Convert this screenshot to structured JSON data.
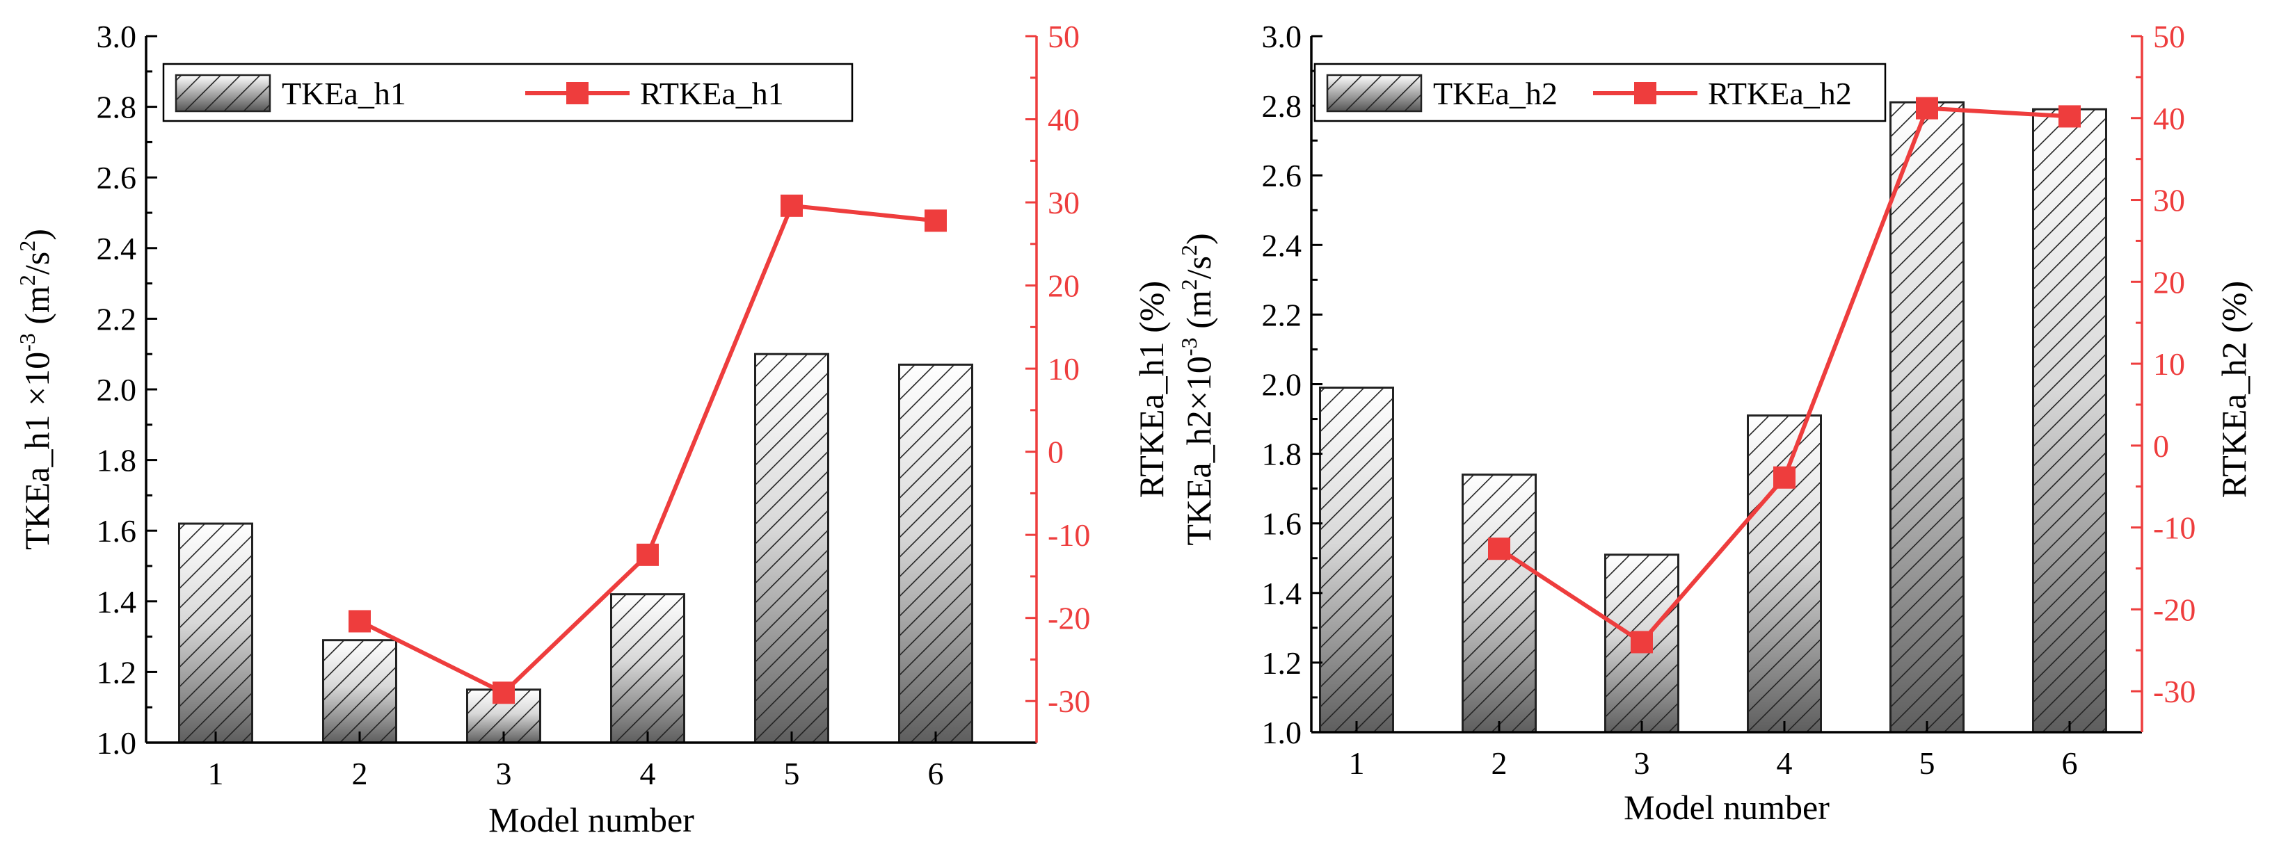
{
  "chart_data": [
    {
      "type": "bar",
      "title": "",
      "categories": [
        "1",
        "2",
        "3",
        "4",
        "5",
        "6"
      ],
      "xlabel": "Model number",
      "ylabel_prefix": "TKEa_h1 ×10",
      "ylabel_exp": "-3",
      "ylabel_suffix": " (m",
      "ylabel_unit_exp": "2",
      "ylabel_unit_mid": "/s",
      "ylabel_unit_exp2": "2",
      "ylabel_close": ")",
      "y2label": "RTKEa_h1 (%)",
      "ylim": [
        1.0,
        3.0
      ],
      "y2lim": [
        -35,
        50
      ],
      "yticks": [
        "1.0",
        "1.2",
        "1.4",
        "1.6",
        "1.8",
        "2.0",
        "2.2",
        "2.4",
        "2.6",
        "2.8",
        "3.0"
      ],
      "y2ticks": [
        "-30",
        "-20",
        "-10",
        "0",
        "10",
        "20",
        "30",
        "40",
        "50"
      ],
      "legend_position": "top",
      "series": [
        {
          "name": "TKEa_h1",
          "type": "bar",
          "pattern": "hatched-gradient",
          "values": [
            1.62,
            1.29,
            1.15,
            1.42,
            2.1,
            2.07
          ]
        },
        {
          "name": "RTKEa_h1",
          "type": "line",
          "axis": "right",
          "marker": "square",
          "color": "#ee3d3d",
          "values": [
            null,
            -20.4,
            -29.0,
            -12.4,
            29.6,
            27.8
          ]
        }
      ]
    },
    {
      "type": "bar",
      "title": "",
      "categories": [
        "1",
        "2",
        "3",
        "4",
        "5",
        "6"
      ],
      "xlabel": "Model number",
      "ylabel_prefix": "TKEa_h2×10",
      "ylabel_exp": "-3",
      "ylabel_suffix": " (m",
      "ylabel_unit_exp": "2",
      "ylabel_unit_mid": "/s",
      "ylabel_unit_exp2": "2",
      "ylabel_close": ")",
      "y2label": "RTKEa_h2 (%)",
      "overlap_label": "RTKEa_h1 (%)",
      "ylim": [
        1.0,
        3.0
      ],
      "y2lim": [
        -35,
        50
      ],
      "yticks": [
        "1.0",
        "1.2",
        "1.4",
        "1.6",
        "1.8",
        "2.0",
        "2.2",
        "2.4",
        "2.6",
        "2.8",
        "3.0"
      ],
      "y2ticks": [
        "-30",
        "-20",
        "-10",
        "0",
        "10",
        "20",
        "30",
        "40",
        "50"
      ],
      "legend_position": "top",
      "series": [
        {
          "name": "TKEa_h2",
          "type": "bar",
          "pattern": "hatched-gradient",
          "values": [
            1.99,
            1.74,
            1.51,
            1.91,
            2.81,
            2.79
          ]
        },
        {
          "name": "RTKEa_h2",
          "type": "line",
          "axis": "right",
          "marker": "square",
          "color": "#ee3d3d",
          "values": [
            null,
            -12.6,
            -24.0,
            -3.9,
            41.2,
            40.2
          ]
        }
      ]
    }
  ]
}
